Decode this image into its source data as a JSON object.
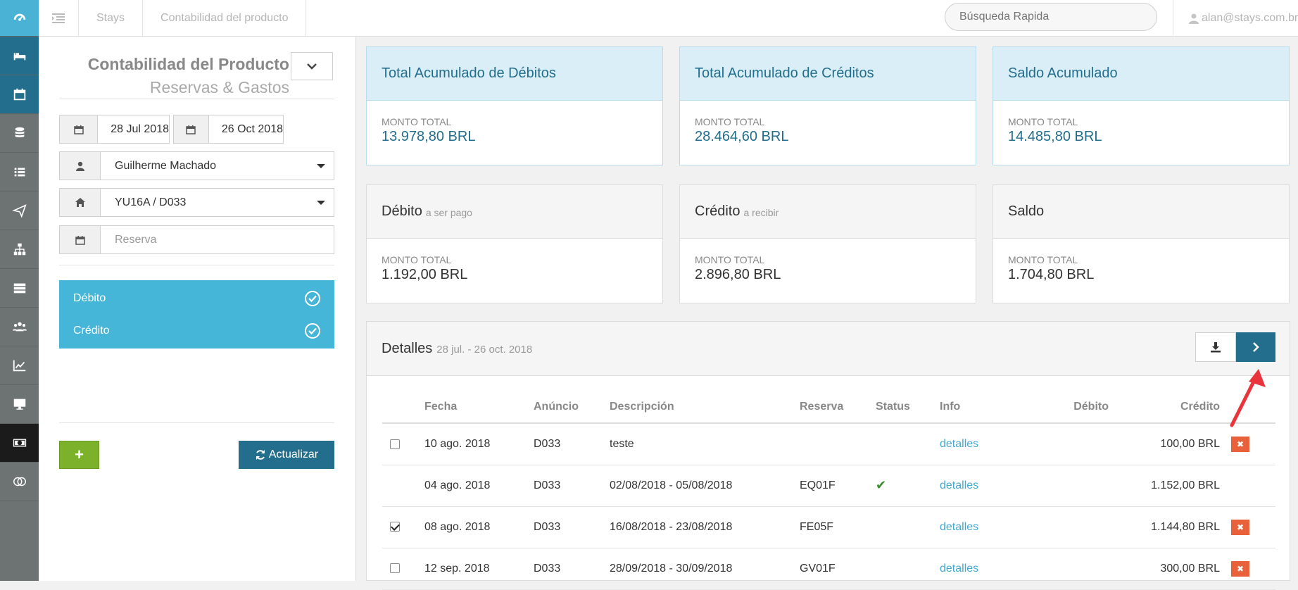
{
  "topbar": {
    "crumb_1": "Stays",
    "crumb_2": "Contabilidad del producto",
    "search_placeholder": "Búsqueda Rapida",
    "user": "alan@stays.com.br"
  },
  "rail": {
    "items": [
      "dashboard-icon",
      "bed-icon",
      "calendar-icon",
      "database-icon",
      "list-icon",
      "paper-plane-icon",
      "sitemap-icon",
      "server-icon",
      "users-icon",
      "line-chart-icon",
      "desktop-icon",
      "money-icon",
      "circles-icon"
    ]
  },
  "left": {
    "title": "Contabilidad del Producto",
    "subtitle": "Reservas & Gastos",
    "date_from": "28 Jul 2018",
    "date_to": "26 Oct 2018",
    "owner": "Guilherme Machado",
    "property": "YU16A / D033",
    "reserva_placeholder": "Reserva",
    "toggle_debit": "Débito",
    "toggle_credit": "Crédito",
    "add_label": "+",
    "update_label": "Actualizar"
  },
  "cards": {
    "debits_total": {
      "title": "Total Acumulado de Débitos",
      "label": "MONTO TOTAL",
      "amount": "13.978,80 BRL"
    },
    "credits_total": {
      "title": "Total Acumulado de Créditos",
      "label": "MONTO TOTAL",
      "amount": "28.464,60 BRL"
    },
    "balance_total": {
      "title": "Saldo Acumulado",
      "label": "MONTO TOTAL",
      "amount": "14.485,80 BRL"
    },
    "debit_pending": {
      "title": "Débito",
      "sub": "a ser pago",
      "label": "MONTO TOTAL",
      "amount": "1.192,00 BRL"
    },
    "credit_pending": {
      "title": "Crédito",
      "sub": "a recibir",
      "label": "MONTO TOTAL",
      "amount": "2.896,80 BRL"
    },
    "balance": {
      "title": "Saldo",
      "label": "MONTO TOTAL",
      "amount": "1.704,80 BRL"
    }
  },
  "details": {
    "title": "Detalles",
    "range": "28 jul. - 26 oct. 2018",
    "columns": [
      "Fecha",
      "Anúncio",
      "Descripción",
      "Reserva",
      "Status",
      "Info",
      "Débito",
      "Crédito"
    ],
    "rows": [
      {
        "checkbox": true,
        "checked": false,
        "fecha": "10 ago. 2018",
        "anuncio": "D033",
        "descripcion": "teste",
        "reserva": "",
        "status_ok": false,
        "info": "detalles",
        "debito": "",
        "credito": "100,00 BRL",
        "deletable": true
      },
      {
        "checkbox": false,
        "checked": false,
        "fecha": "04 ago. 2018",
        "anuncio": "D033",
        "descripcion": "02/08/2018 - 05/08/2018",
        "reserva": "EQ01F",
        "status_ok": true,
        "info": "detalles",
        "debito": "",
        "credito": "1.152,00 BRL",
        "deletable": false
      },
      {
        "checkbox": true,
        "checked": true,
        "fecha": "08 ago. 2018",
        "anuncio": "D033",
        "descripcion": "16/08/2018 - 23/08/2018",
        "reserva": "FE05F",
        "status_ok": false,
        "info": "detalles",
        "debito": "",
        "credito": "1.144,80 BRL",
        "deletable": true
      },
      {
        "checkbox": true,
        "checked": false,
        "fecha": "12 sep. 2018",
        "anuncio": "D033",
        "descripcion": "28/09/2018 - 30/09/2018",
        "reserva": "GV01F",
        "status_ok": false,
        "info": "detalles",
        "debito": "",
        "credito": "300,00 BRL",
        "deletable": true
      }
    ]
  },
  "colors": {
    "accent": "#45b5d8",
    "primary": "#236e8c",
    "add_green": "#7bb12b",
    "delete_red": "#e8613b",
    "annotation_arrow": "#e8343a"
  }
}
